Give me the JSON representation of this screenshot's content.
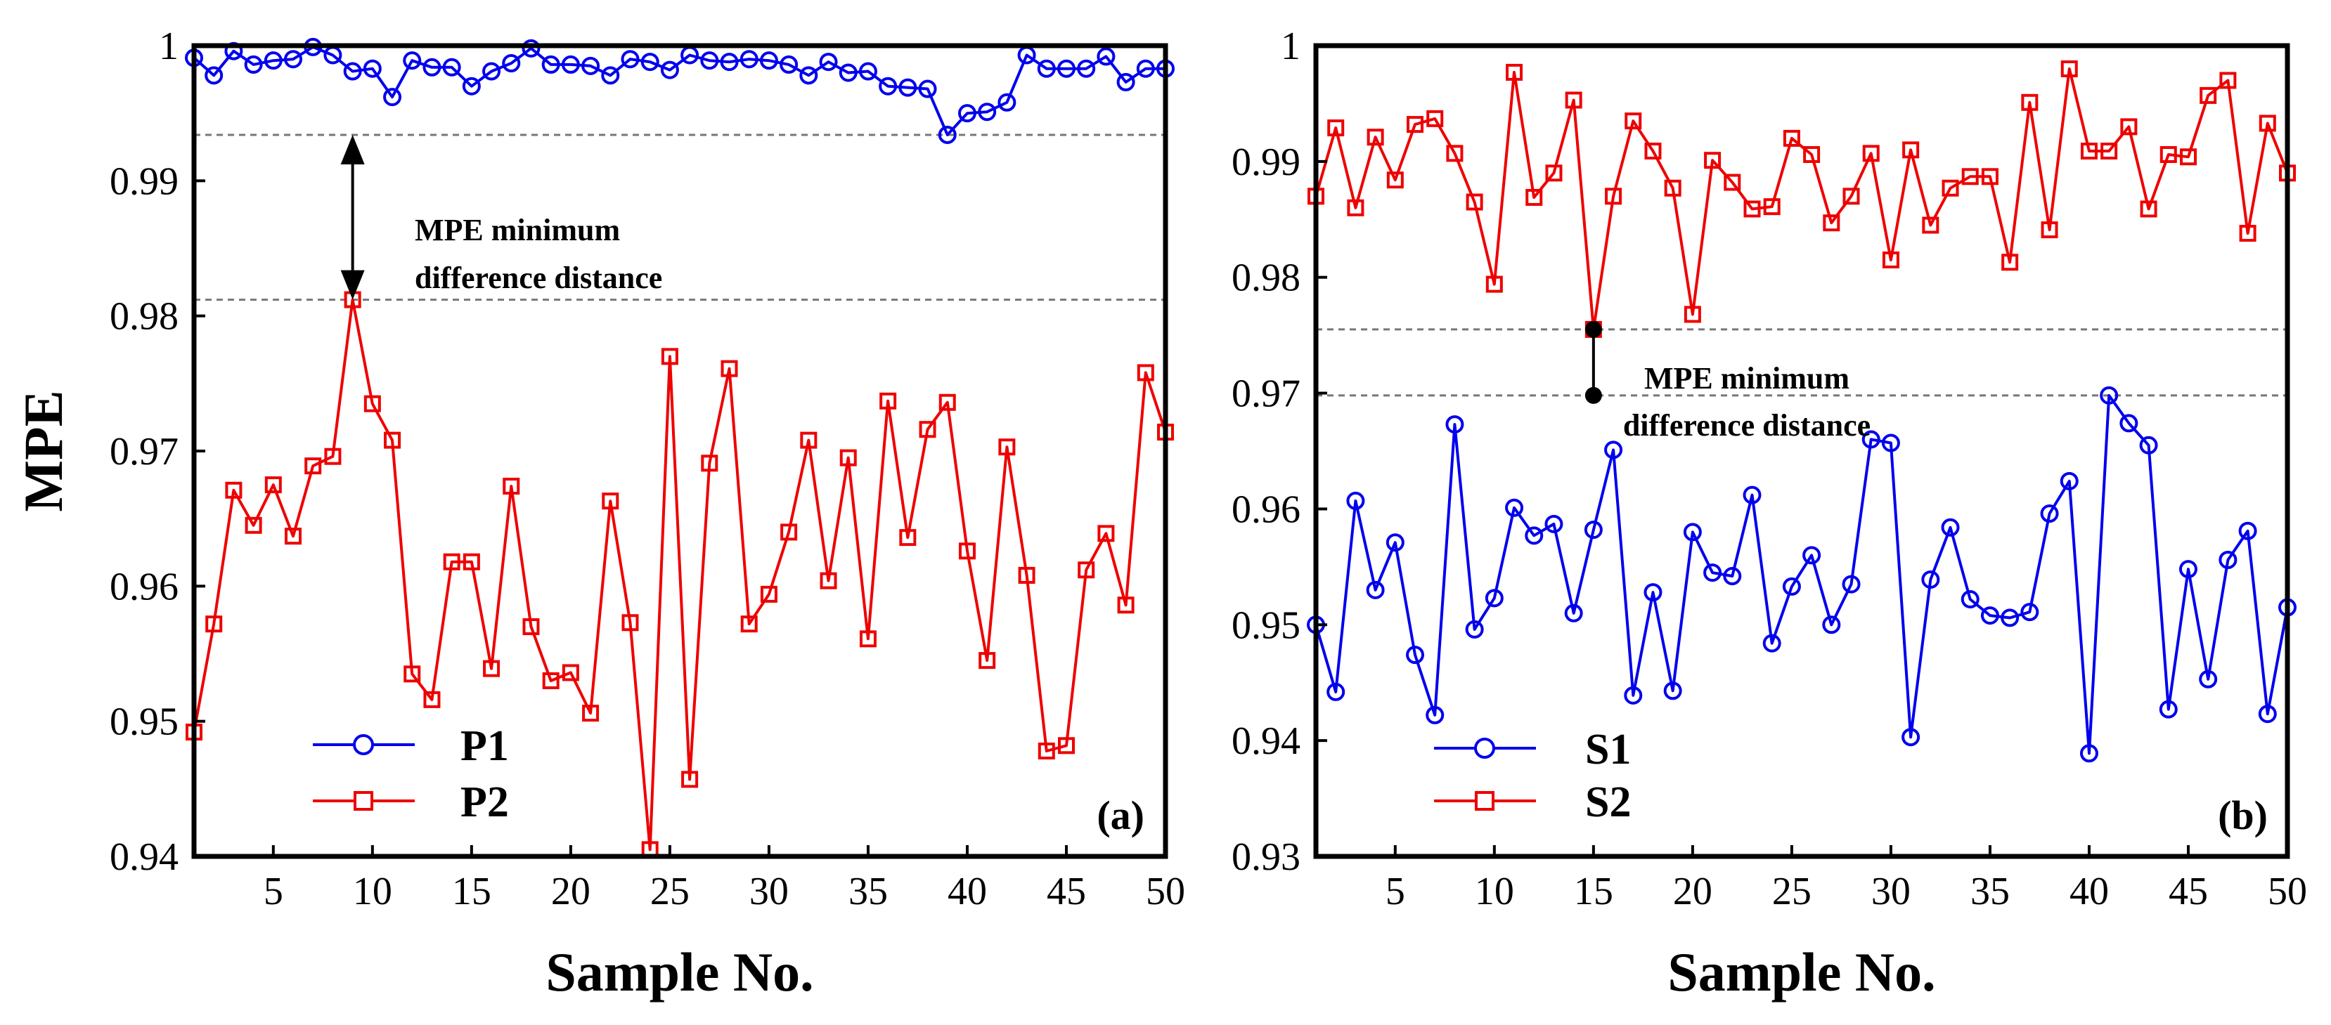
{
  "chart_data": [
    {
      "type": "line",
      "panel_label": "(a)",
      "xlabel": "Sample No.",
      "ylabel": "MPE",
      "xlim": [
        1,
        50
      ],
      "ylim": [
        0.94,
        1
      ],
      "xticks": [
        5,
        10,
        15,
        20,
        25,
        30,
        35,
        40,
        45,
        50
      ],
      "yticks": [
        0.94,
        0.95,
        0.96,
        0.97,
        0.98,
        0.99,
        1
      ],
      "ytick_labels": [
        "0.94",
        "0.95",
        "0.96",
        "0.97",
        "0.98",
        "0.99",
        "1"
      ],
      "x": [
        1,
        2,
        3,
        4,
        5,
        6,
        7,
        8,
        9,
        10,
        11,
        12,
        13,
        14,
        15,
        16,
        17,
        18,
        19,
        20,
        21,
        22,
        23,
        24,
        25,
        26,
        27,
        28,
        29,
        30,
        31,
        32,
        33,
        34,
        35,
        36,
        37,
        38,
        39,
        40,
        41,
        42,
        43,
        44,
        45,
        46,
        47,
        48,
        49,
        50
      ],
      "series": [
        {
          "name": "P1",
          "color": "#0000ee",
          "marker": "circle",
          "values": [
            0.9991,
            0.9978,
            0.9996,
            0.9986,
            0.9989,
            0.999,
            0.9999,
            0.9993,
            0.9981,
            0.9983,
            0.9962,
            0.9989,
            0.9984,
            0.9984,
            0.997,
            0.9981,
            0.9987,
            0.9998,
            0.9986,
            0.9986,
            0.9985,
            0.9978,
            0.999,
            0.9988,
            0.9982,
            0.9993,
            0.9989,
            0.9988,
            0.999,
            0.9989,
            0.9986,
            0.9978,
            0.9988,
            0.998,
            0.9981,
            0.997,
            0.9969,
            0.9968,
            0.9934,
            0.995,
            0.9951,
            0.9958,
            0.9993,
            0.9983,
            0.9983,
            0.9983,
            0.9992,
            0.9973,
            0.9983,
            0.9983
          ]
        },
        {
          "name": "P2",
          "color": "#ee0000",
          "marker": "square",
          "values": [
            0.9492,
            0.9572,
            0.9671,
            0.9645,
            0.9675,
            0.9637,
            0.9689,
            0.9696,
            0.9812,
            0.9735,
            0.9708,
            0.9535,
            0.9516,
            0.9618,
            0.9618,
            0.9539,
            0.9674,
            0.957,
            0.953,
            0.9536,
            0.9506,
            0.9663,
            0.9573,
            0.9405,
            0.977,
            0.9457,
            0.9691,
            0.9761,
            0.9572,
            0.9594,
            0.964,
            0.9708,
            0.9604,
            0.9695,
            0.9561,
            0.9737,
            0.9636,
            0.9716,
            0.9736,
            0.9626,
            0.9545,
            0.9703,
            0.9608,
            0.9478,
            0.9482,
            0.9612,
            0.9639,
            0.9586,
            0.9758,
            0.9714
          ]
        }
      ],
      "reference_lines": [
        0.9934,
        0.9812
      ],
      "annotation": {
        "line1": "MPE minimum",
        "line2": "difference distance",
        "x": 9,
        "from": 0.9934,
        "to": 0.9812
      },
      "legend_position": "bottom-left"
    },
    {
      "type": "line",
      "panel_label": "(b)",
      "xlabel": "Sample No.",
      "ylabel": "",
      "xlim": [
        1,
        50
      ],
      "ylim": [
        0.93,
        1
      ],
      "xticks": [
        5,
        10,
        15,
        20,
        25,
        30,
        35,
        40,
        45,
        50
      ],
      "yticks": [
        0.93,
        0.94,
        0.95,
        0.96,
        0.97,
        0.98,
        0.99,
        1
      ],
      "ytick_labels": [
        "0.93",
        "0.94",
        "0.95",
        "0.96",
        "0.97",
        "0.98",
        "0.99",
        "1"
      ],
      "x": [
        1,
        2,
        3,
        4,
        5,
        6,
        7,
        8,
        9,
        10,
        11,
        12,
        13,
        14,
        15,
        16,
        17,
        18,
        19,
        20,
        21,
        22,
        23,
        24,
        25,
        26,
        27,
        28,
        29,
        30,
        31,
        32,
        33,
        34,
        35,
        36,
        37,
        38,
        39,
        40,
        41,
        42,
        43,
        44,
        45,
        46,
        47,
        48,
        49,
        50
      ],
      "series": [
        {
          "name": "S1",
          "color": "#0000ee",
          "marker": "circle",
          "values": [
            0.95,
            0.9442,
            0.9607,
            0.953,
            0.9571,
            0.9474,
            0.9422,
            0.9673,
            0.9496,
            0.9523,
            0.9601,
            0.9577,
            0.9587,
            0.951,
            0.9582,
            0.9651,
            0.9439,
            0.9528,
            0.9443,
            0.958,
            0.9545,
            0.9542,
            0.9612,
            0.9484,
            0.9533,
            0.956,
            0.95,
            0.9535,
            0.966,
            0.9657,
            0.9403,
            0.9539,
            0.9584,
            0.9522,
            0.9508,
            0.9506,
            0.9511,
            0.9596,
            0.9624,
            0.9389,
            0.9698,
            0.9674,
            0.9655,
            0.9427,
            0.9548,
            0.9453,
            0.9556,
            0.9581,
            0.9423,
            0.9515
          ]
        },
        {
          "name": "S2",
          "color": "#ee0000",
          "marker": "square",
          "values": [
            0.987,
            0.9929,
            0.986,
            0.9921,
            0.9884,
            0.9932,
            0.9937,
            0.9907,
            0.9865,
            0.9794,
            0.9977,
            0.9869,
            0.989,
            0.9953,
            0.9755,
            0.987,
            0.9935,
            0.9909,
            0.9877,
            0.9768,
            0.9901,
            0.9882,
            0.9859,
            0.9861,
            0.992,
            0.9906,
            0.9847,
            0.987,
            0.9907,
            0.9815,
            0.991,
            0.9845,
            0.9877,
            0.9887,
            0.9887,
            0.9813,
            0.9951,
            0.9841,
            0.998,
            0.9909,
            0.9909,
            0.993,
            0.9859,
            0.9906,
            0.9904,
            0.9957,
            0.997,
            0.9838,
            0.9933,
            0.989
          ]
        }
      ],
      "reference_lines": [
        0.9755,
        0.9698
      ],
      "annotation": {
        "line1": "MPE minimum",
        "line2": "difference distance",
        "x": 15,
        "from": 0.9755,
        "to": 0.9698
      },
      "legend_position": "bottom-left"
    }
  ]
}
